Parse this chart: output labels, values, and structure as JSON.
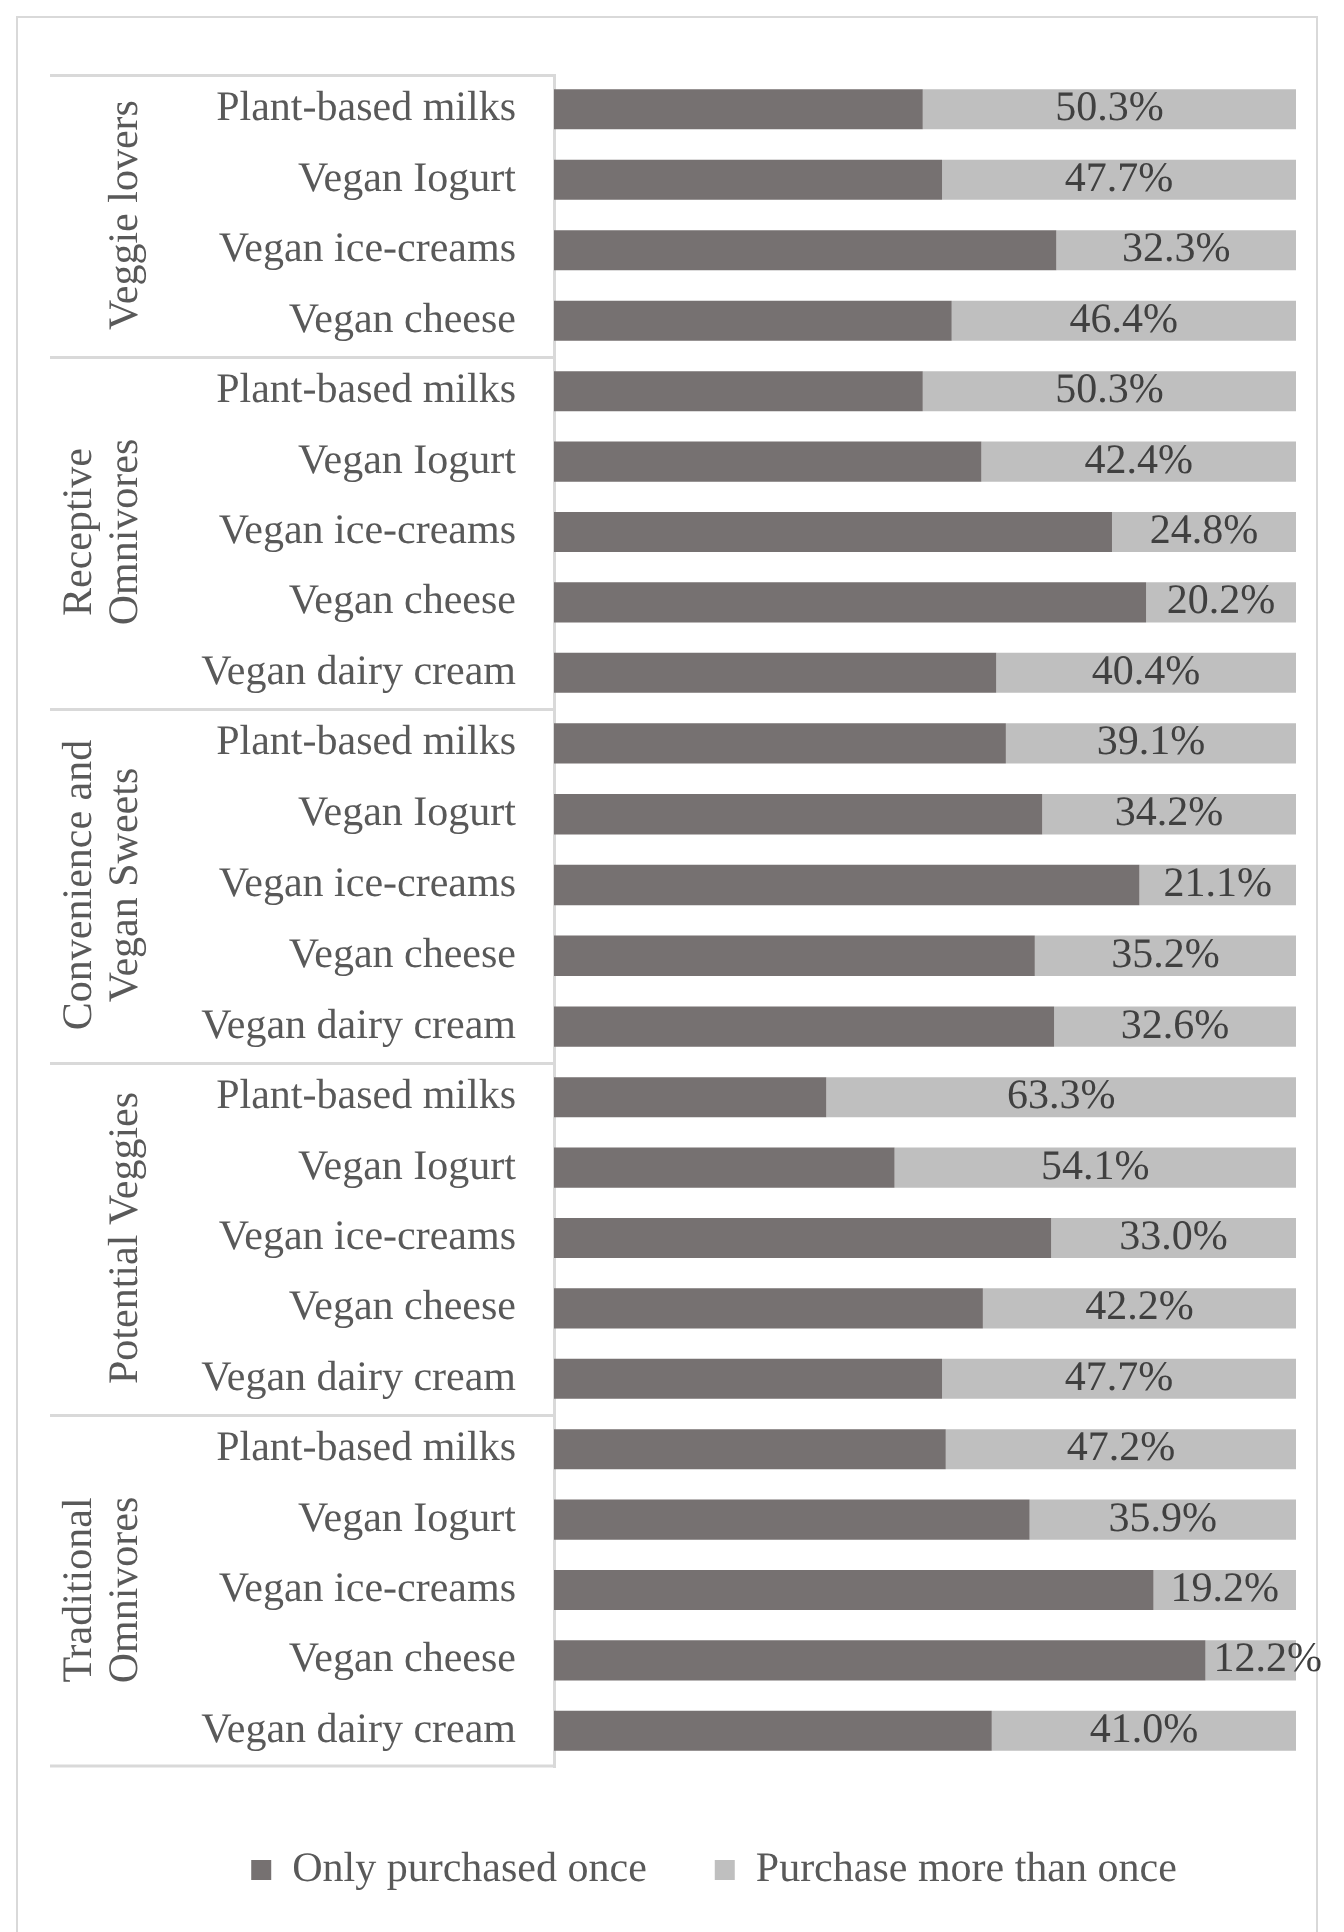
{
  "chart_data": [
    {
      "type": "bar",
      "orientation": "horizontal",
      "stacked": true,
      "ylabel": "Veggie lovers",
      "categories": [
        "Plant-based milks",
        "Vegan Iogurt",
        "Vegan ice-creams",
        "Vegan cheese"
      ],
      "series": [
        {
          "color": "#767171",
          "values": [
            49.7,
            52.3,
            67.7,
            53.6
          ]
        },
        {
          "color": "#bfbfbf",
          "values": [
            50.3,
            47.7,
            32.3,
            46.4
          ],
          "value_labels": [
            "50.3%",
            "47.7%",
            "32.3%",
            "46.4%"
          ]
        }
      ],
      "xlim": [
        0,
        100
      ],
      "tick_labels": "y"
    },
    {
      "type": "bar",
      "orientation": "horizontal",
      "stacked": true,
      "ylabel": "Receptive Omnivores",
      "categories": [
        "Plant-based milks",
        "Vegan Iogurt",
        "Vegan ice-creams",
        "Vegan cheese",
        "Vegan dairy cream"
      ],
      "series": [
        {
          "color": "#767171",
          "values": [
            49.7,
            57.6,
            75.2,
            79.8,
            59.6
          ]
        },
        {
          "color": "#bfbfbf",
          "values": [
            50.3,
            42.4,
            24.8,
            20.2,
            40.4
          ],
          "value_labels": [
            "50.3%",
            "42.4%",
            "24.8%",
            "20.2%",
            "40.4%"
          ]
        }
      ],
      "xlim": [
        0,
        100
      ],
      "tick_labels": "y"
    },
    {
      "type": "bar",
      "orientation": "horizontal",
      "stacked": true,
      "ylabel": "Convenience and Vegan Sweets",
      "categories": [
        "Plant-based milks",
        "Vegan Iogurt",
        "Vegan ice-creams",
        "Vegan cheese",
        "Vegan dairy cream"
      ],
      "series": [
        {
          "color": "#767171",
          "values": [
            60.9,
            65.8,
            78.9,
            64.8,
            67.4
          ]
        },
        {
          "color": "#bfbfbf",
          "values": [
            39.1,
            34.2,
            21.1,
            35.2,
            32.6
          ],
          "value_labels": [
            "39.1%",
            "34.2%",
            "21.1%",
            "35.2%",
            "32.6%"
          ]
        }
      ],
      "xlim": [
        0,
        100
      ],
      "tick_labels": "y"
    },
    {
      "type": "bar",
      "orientation": "horizontal",
      "stacked": true,
      "ylabel": "Potential Veggies",
      "categories": [
        "Plant-based milks",
        "Vegan Iogurt",
        "Vegan ice-creams",
        "Vegan cheese",
        "Vegan dairy cream"
      ],
      "series": [
        {
          "color": "#767171",
          "values": [
            36.7,
            45.9,
            67.0,
            57.8,
            52.3
          ]
        },
        {
          "color": "#bfbfbf",
          "values": [
            63.3,
            54.1,
            33.0,
            42.2,
            47.7
          ],
          "value_labels": [
            "63.3%",
            "54.1%",
            "33.0%",
            "42.2%",
            "47.7%"
          ]
        }
      ],
      "xlim": [
        0,
        100
      ],
      "tick_labels": "y"
    },
    {
      "type": "bar",
      "orientation": "horizontal",
      "stacked": true,
      "ylabel": "Traditional Omnivores",
      "categories": [
        "Plant-based milks",
        "Vegan Iogurt",
        "Vegan ice-creams",
        "Vegan cheese",
        "Vegan dairy cream"
      ],
      "series": [
        {
          "name": "Only purchased once",
          "color": "#767171",
          "values": [
            52.8,
            64.1,
            80.8,
            87.8,
            59.0
          ]
        },
        {
          "name": "Purchase more than once",
          "color": "#bfbfbf",
          "values": [
            47.2,
            35.9,
            19.2,
            12.2,
            41.0
          ],
          "value_labels": [
            "47.2%",
            "35.9%",
            "19.2%",
            "12.2%",
            "41.0%"
          ]
        }
      ],
      "xlim": [
        0,
        100
      ],
      "tick_labels": "y",
      "legend": "bottom"
    }
  ]
}
